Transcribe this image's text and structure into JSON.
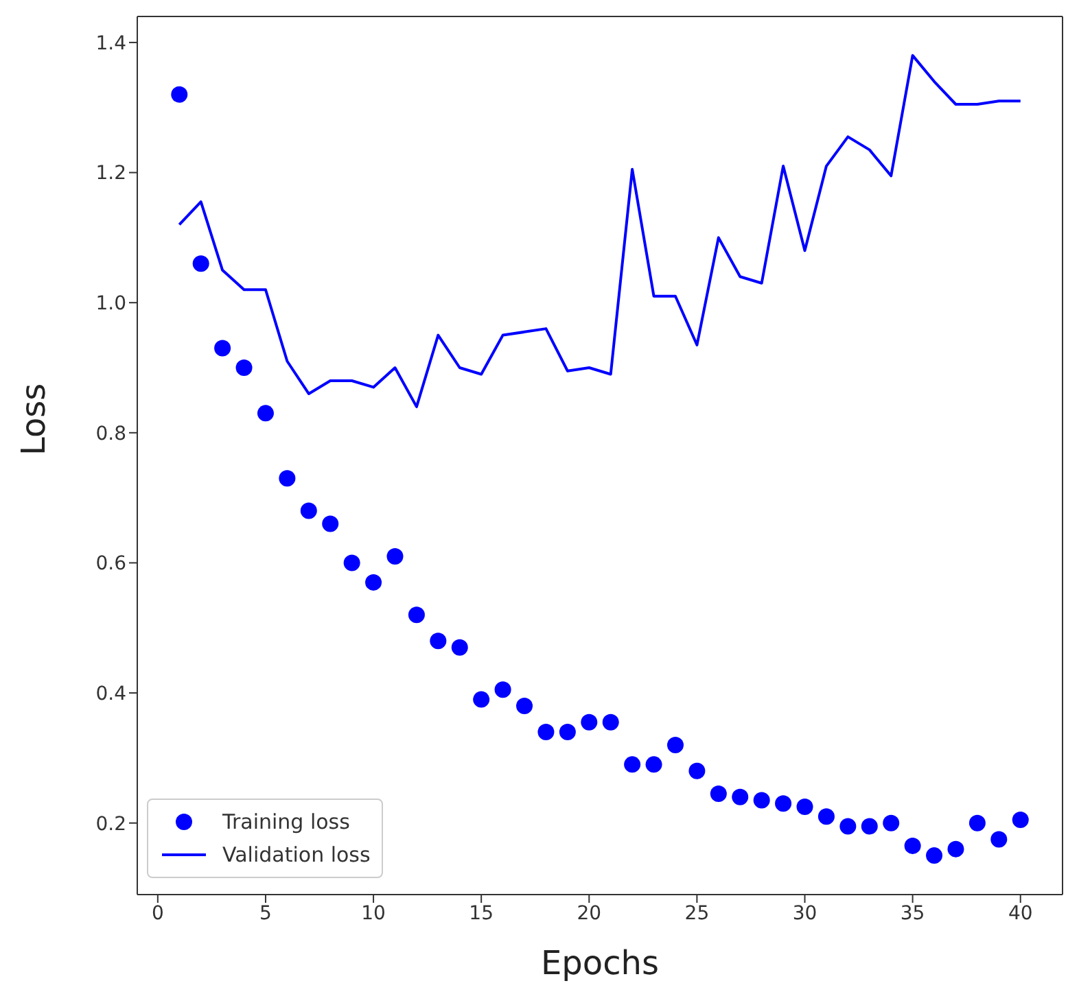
{
  "chart_data": {
    "type": "line",
    "xlabel": "Epochs",
    "ylabel": "Loss",
    "x": [
      1,
      2,
      3,
      4,
      5,
      6,
      7,
      8,
      9,
      10,
      11,
      12,
      13,
      14,
      15,
      16,
      17,
      18,
      19,
      20,
      21,
      22,
      23,
      24,
      25,
      26,
      27,
      28,
      29,
      30,
      31,
      32,
      33,
      34,
      35,
      36,
      37,
      38,
      39,
      40
    ],
    "xlim": [
      -0.95,
      41.95
    ],
    "xticks": [
      0,
      5,
      10,
      15,
      20,
      25,
      30,
      35,
      40
    ],
    "ylim": [
      0.09,
      1.44
    ],
    "yticks": [
      0.2,
      0.4,
      0.6,
      0.8,
      {
        "value": 1,
        "label": "1.0"
      },
      1.2,
      1.4
    ],
    "grid": false,
    "legend": "bottom left",
    "series": [
      {
        "name": "Training loss",
        "type": "scatter",
        "marker": "circle",
        "color": "#0000ff",
        "values": [
          1.32,
          1.06,
          0.93,
          0.9,
          0.83,
          0.73,
          0.68,
          0.66,
          0.6,
          0.57,
          0.61,
          0.52,
          0.48,
          0.47,
          0.39,
          0.405,
          0.38,
          0.34,
          0.34,
          0.355,
          0.355,
          0.29,
          0.29,
          0.32,
          0.28,
          0.245,
          0.24,
          0.235,
          0.23,
          0.225,
          0.21,
          0.195,
          0.195,
          0.2,
          0.165,
          0.15,
          0.16,
          0.2,
          0.175,
          0.205
        ]
      },
      {
        "name": "Validation loss",
        "marker": "none",
        "line_style": "solid",
        "color": "#0000ff",
        "values": [
          1.12,
          1.155,
          1.05,
          1.02,
          1.02,
          0.91,
          0.86,
          0.88,
          0.88,
          0.87,
          0.9,
          0.84,
          0.95,
          0.9,
          0.89,
          0.95,
          0.955,
          0.96,
          0.895,
          0.9,
          0.89,
          1.205,
          1.01,
          1.01,
          0.935,
          1.1,
          1.04,
          1.03,
          1.21,
          1.08,
          1.21,
          1.255,
          1.235,
          1.195,
          1.38,
          1.34,
          1.305,
          1.305,
          1.31,
          1.31
        ]
      }
    ]
  }
}
